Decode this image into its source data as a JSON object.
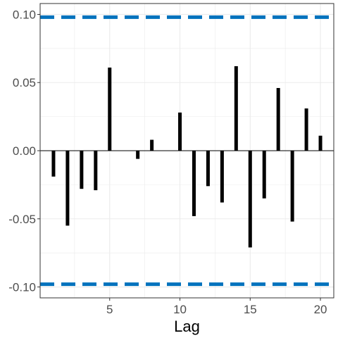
{
  "chart_data": {
    "type": "bar",
    "xlabel": "Lag",
    "ylabel": "",
    "x": [
      1,
      2,
      3,
      4,
      5,
      6,
      7,
      8,
      9,
      10,
      11,
      12,
      13,
      14,
      15,
      16,
      17,
      18,
      19,
      20
    ],
    "values": [
      -0.019,
      -0.055,
      -0.028,
      -0.029,
      0.061,
      0.0,
      -0.006,
      0.008,
      0.0,
      0.028,
      -0.048,
      -0.026,
      -0.038,
      0.062,
      -0.071,
      -0.035,
      0.046,
      -0.052,
      0.031,
      0.011
    ],
    "xlim": [
      0.05,
      20.95
    ],
    "ylim": [
      -0.108,
      0.108
    ],
    "xticks": [
      5,
      10,
      15,
      20
    ],
    "xtick_labels": [
      "5",
      "10",
      "15",
      "20"
    ],
    "yticks": [
      -0.1,
      -0.05,
      0,
      0.05,
      0.1
    ],
    "ytick_labels": [
      "-0.10",
      "-0.05",
      "0.00",
      "0.05",
      "0.10"
    ],
    "confidence_bounds": [
      -0.098,
      0.098
    ],
    "grid": true,
    "colors": {
      "bars": "#000000",
      "bounds": "#0072BD",
      "grid": "#ebebeb",
      "panel_border": "#333333"
    }
  }
}
